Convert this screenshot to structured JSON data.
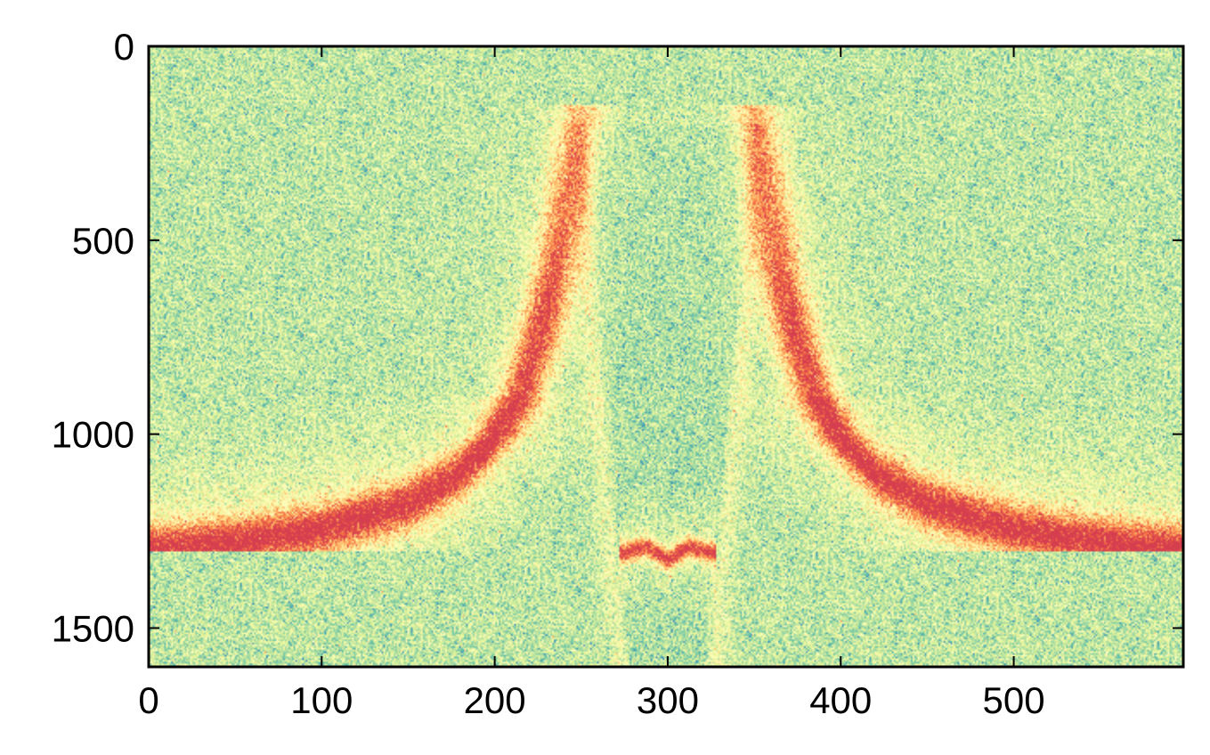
{
  "chart_data": {
    "type": "heatmap",
    "title": "",
    "xlabel": "",
    "ylabel": "",
    "xlim": [
      0,
      598
    ],
    "ylim": [
      1600,
      0
    ],
    "y_inverted": true,
    "colormap": "Spectral_r",
    "colormap_stops": [
      "#3288bd",
      "#66c2a5",
      "#abdda4",
      "#e6f598",
      "#ffffbf",
      "#fee08b",
      "#fdae61",
      "#f46d43",
      "#d53e4f"
    ],
    "x_ticks": [
      {
        "value": 0,
        "label": "0"
      },
      {
        "value": 100,
        "label": "100"
      },
      {
        "value": 200,
        "label": "200"
      },
      {
        "value": 300,
        "label": "300"
      },
      {
        "value": 400,
        "label": "400"
      },
      {
        "value": 500,
        "label": "500"
      }
    ],
    "y_ticks": [
      {
        "value": 0,
        "label": "0"
      },
      {
        "value": 500,
        "label": "500"
      },
      {
        "value": 1000,
        "label": "1000"
      },
      {
        "value": 1500,
        "label": "1500"
      }
    ],
    "features": [
      {
        "name": "left-bright-curve",
        "points": [
          [
            0,
            1300
          ],
          [
            50,
            1280
          ],
          [
            100,
            1245
          ],
          [
            150,
            1180
          ],
          [
            180,
            1100
          ],
          [
            200,
            1010
          ],
          [
            215,
            900
          ],
          [
            225,
            760
          ],
          [
            235,
            580
          ],
          [
            245,
            300
          ],
          [
            250,
            150
          ]
        ]
      },
      {
        "name": "right-bright-curve",
        "points": [
          [
            598,
            1300
          ],
          [
            550,
            1280
          ],
          [
            500,
            1245
          ],
          [
            450,
            1180
          ],
          [
            420,
            1100
          ],
          [
            400,
            1010
          ],
          [
            385,
            900
          ],
          [
            375,
            760
          ],
          [
            365,
            580
          ],
          [
            355,
            300
          ],
          [
            350,
            150
          ]
        ]
      },
      {
        "name": "inner-left-faint-branch",
        "points": [
          [
            248,
            200
          ],
          [
            252,
            500
          ],
          [
            258,
            900
          ],
          [
            264,
            1200
          ],
          [
            270,
            1500
          ],
          [
            272,
            1600
          ]
        ]
      },
      {
        "name": "inner-right-faint-branch",
        "points": [
          [
            352,
            200
          ],
          [
            348,
            500
          ],
          [
            342,
            900
          ],
          [
            336,
            1200
          ],
          [
            330,
            1500
          ],
          [
            328,
            1600
          ]
        ]
      },
      {
        "name": "center-band",
        "points": [
          [
            275,
            1305
          ],
          [
            288,
            1290
          ],
          [
            300,
            1325
          ],
          [
            312,
            1290
          ],
          [
            325,
            1305
          ]
        ]
      }
    ]
  }
}
